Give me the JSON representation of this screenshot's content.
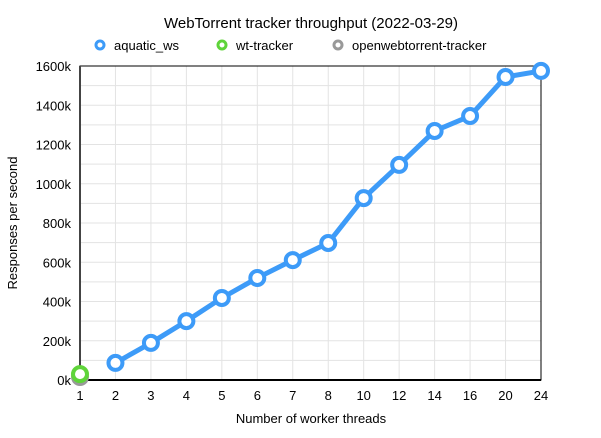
{
  "chart_data": {
    "type": "line",
    "title": "WebTorrent tracker throughput (2022-03-29)",
    "xlabel": "Number of worker threads",
    "ylabel": "Responses per second",
    "categories": [
      "1",
      "2",
      "3",
      "4",
      "5",
      "6",
      "7",
      "8",
      "10",
      "12",
      "14",
      "16",
      "20",
      "24"
    ],
    "yticks": [
      "0k",
      "200k",
      "400k",
      "600k",
      "800k",
      "1000k",
      "1200k",
      "1400k",
      "1600k"
    ],
    "ylim": [
      0,
      1600000
    ],
    "grid": true,
    "legend": "top",
    "series": [
      {
        "name": "aquatic_ws",
        "color": "#3d9bf8",
        "values": [
          null,
          87000,
          189000,
          300000,
          418000,
          520000,
          611000,
          698000,
          927000,
          1096000,
          1269000,
          1345000,
          1544000,
          1575000
        ]
      },
      {
        "name": "wt-tracker",
        "color": "#5fd43a",
        "values": [
          30000,
          null,
          null,
          null,
          null,
          null,
          null,
          null,
          null,
          null,
          null,
          null,
          null,
          null
        ]
      },
      {
        "name": "openwebtorrent-tracker",
        "color": "#999999",
        "values": [
          15000,
          null,
          null,
          null,
          null,
          null,
          null,
          null,
          null,
          null,
          null,
          null,
          null,
          null
        ]
      }
    ]
  }
}
